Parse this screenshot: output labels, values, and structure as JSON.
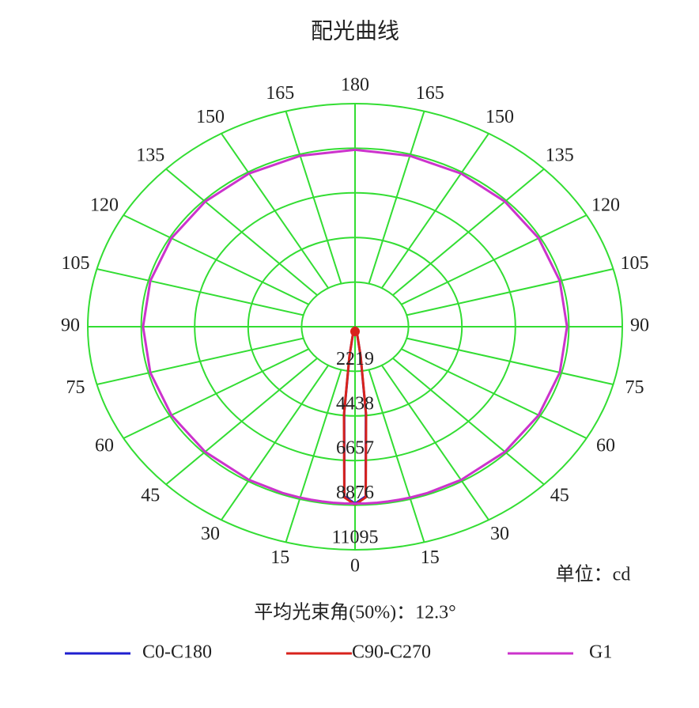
{
  "chart_data": {
    "type": "polar",
    "title": "配光曲线",
    "x": [
      0,
      3,
      6,
      9,
      12,
      15,
      20,
      30,
      45,
      60,
      75,
      90,
      105,
      120,
      135,
      150,
      165,
      180
    ],
    "series": [
      {
        "name": "C0-C180",
        "color": "#1f1fcf",
        "values": [
          8800,
          8450,
          4300,
          1450,
          480,
          190,
          55,
          0,
          0,
          0,
          0,
          0,
          0,
          0,
          0,
          0,
          0,
          0
        ]
      },
      {
        "name": "C90-C270",
        "color": "#d8231c",
        "values": [
          8850,
          8500,
          4400,
          1500,
          500,
          200,
          60,
          0,
          0,
          0,
          0,
          0,
          0,
          0,
          0,
          0,
          0,
          0
        ]
      },
      {
        "name": "G1",
        "color": "#cc33cc",
        "values": [
          8800,
          8800,
          8800,
          8800,
          8800,
          8800,
          8800,
          8800,
          8800,
          8800,
          8800,
          8800,
          8800,
          8800,
          8800,
          8800,
          8800,
          8800
        ]
      }
    ],
    "rlim": [
      0,
      11095
    ],
    "rticks": [
      2219,
      4438,
      6657,
      8876,
      11095
    ],
    "xticks": [
      0,
      15,
      30,
      45,
      60,
      75,
      90,
      105,
      120,
      135,
      150,
      165,
      180
    ],
    "grid_color": "#33dd33",
    "annotations": [
      "单位：cd",
      "平均光束角(50%)：12.3°"
    ]
  }
}
